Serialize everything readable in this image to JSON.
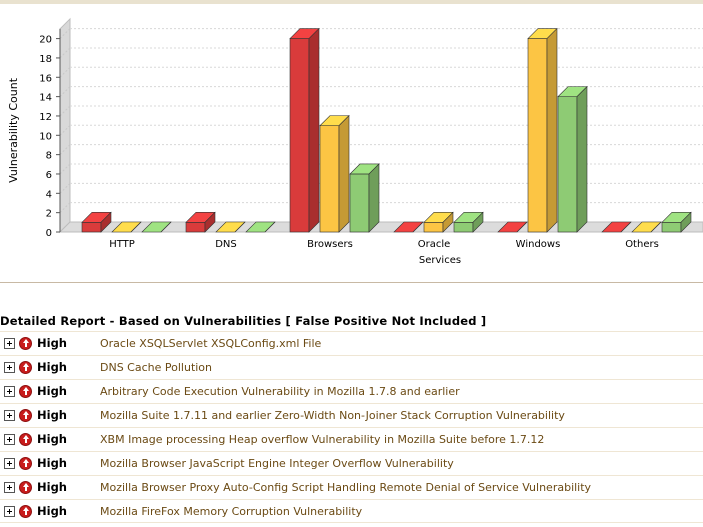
{
  "chart_data": {
    "type": "bar",
    "xlabel": "Services",
    "ylabel": "Vulnerability Count",
    "ylim": [
      0,
      21
    ],
    "yticks": [
      0,
      2,
      4,
      6,
      8,
      10,
      12,
      14,
      16,
      18,
      20
    ],
    "grid": true,
    "categories": [
      "HTTP",
      "DNS",
      "Browsers",
      "Oracle",
      "Windows",
      "Others"
    ],
    "series": [
      {
        "color": "#d93b3b",
        "values": [
          1,
          1,
          20,
          0,
          0,
          0
        ]
      },
      {
        "color": "#fcc544",
        "values": [
          0,
          0,
          11,
          1,
          20,
          0
        ]
      },
      {
        "color": "#8ecb74",
        "values": [
          0,
          0,
          6,
          1,
          14,
          1
        ]
      }
    ]
  },
  "report": {
    "title": "Detailed Report - Based on Vulnerabilities [ False Positive Not Included ]",
    "rows": [
      {
        "severity": "High",
        "name": "Oracle XSQLServlet XSQLConfig.xml File"
      },
      {
        "severity": "High",
        "name": "DNS Cache Pollution"
      },
      {
        "severity": "High",
        "name": "Arbitrary Code Execution Vulnerability in Mozilla 1.7.8 and earlier"
      },
      {
        "severity": "High",
        "name": "Mozilla Suite 1.7.11 and earlier Zero-Width Non-Joiner Stack Corruption Vulnerability"
      },
      {
        "severity": "High",
        "name": "XBM Image processing Heap overflow Vulnerability in Mozilla Suite before 1.7.12"
      },
      {
        "severity": "High",
        "name": "Mozilla Browser JavaScript Engine Integer Overflow Vulnerability"
      },
      {
        "severity": "High",
        "name": "Mozilla Browser Proxy Auto-Config Script Handling Remote Denial of Service Vulnerability"
      },
      {
        "severity": "High",
        "name": "Mozilla FireFox Memory Corruption Vulnerability"
      }
    ]
  }
}
